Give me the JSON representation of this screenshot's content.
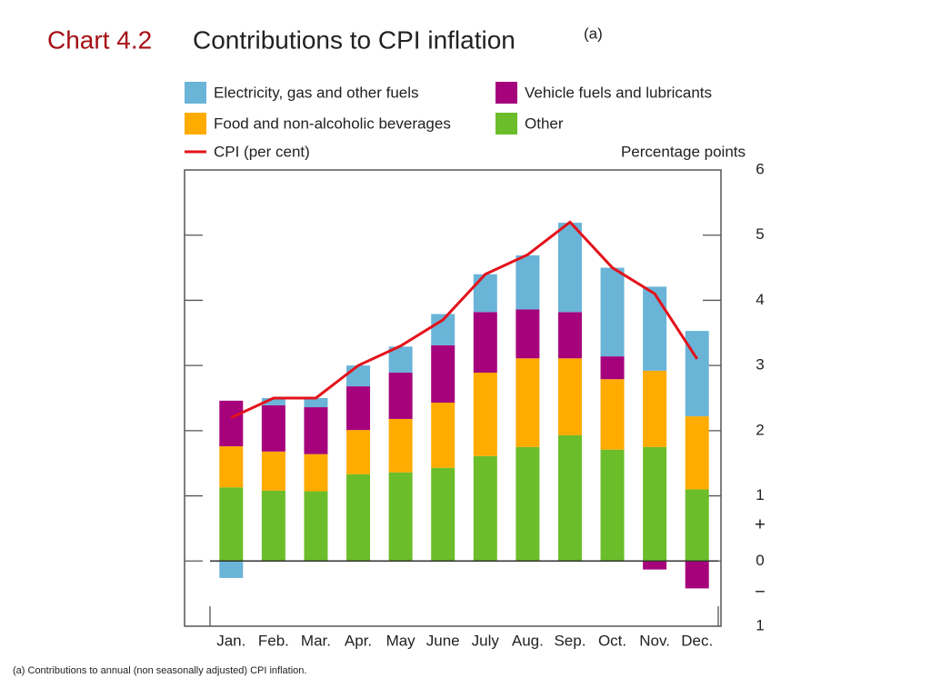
{
  "chart_data": {
    "type": "bar",
    "stacked": true,
    "chart_number": "Chart 4.2",
    "title": "Contributions to CPI inflation",
    "title_note": "(a)",
    "y_axis_label": "Percentage points",
    "axis_signs": [
      "+",
      "−"
    ],
    "footnote": "(a) Contributions to annual (non seasonally adjusted) CPI inflation.",
    "categories": [
      "Jan.",
      "Feb.",
      "Mar.",
      "Apr.",
      "May",
      "June",
      "July",
      "Aug.",
      "Sep.",
      "Oct.",
      "Nov.",
      "Dec."
    ],
    "series": [
      {
        "name": "Other",
        "color": "#6cbd2a",
        "values": [
          1.13,
          1.08,
          1.07,
          1.33,
          1.36,
          1.43,
          1.61,
          1.75,
          1.93,
          1.71,
          1.75,
          1.1
        ]
      },
      {
        "name": "Food and non-alcoholic beverages",
        "color": "#ffab00",
        "values": [
          0.63,
          0.6,
          0.57,
          0.68,
          0.82,
          1.0,
          1.28,
          1.36,
          1.18,
          1.08,
          1.17,
          1.12
        ]
      },
      {
        "name": "Vehicle fuels and lubricants",
        "color": "#a5027c",
        "values": [
          0.7,
          0.71,
          0.72,
          0.67,
          0.71,
          0.88,
          0.93,
          0.75,
          0.71,
          0.35,
          -0.13,
          -0.42
        ]
      },
      {
        "name": "Electricity, gas and other fuels",
        "color": "#6ab4d8",
        "values": [
          -0.26,
          0.11,
          0.14,
          0.32,
          0.4,
          0.48,
          0.58,
          0.83,
          1.37,
          1.36,
          1.29,
          1.31
        ]
      }
    ],
    "line": {
      "name": "CPI (per cent)",
      "color": "#e3121b",
      "values": [
        2.2,
        2.5,
        2.5,
        3.0,
        3.3,
        3.7,
        4.4,
        4.7,
        5.2,
        4.5,
        4.1,
        3.1
      ]
    },
    "ylim": [
      -1,
      6
    ],
    "yticks": [
      {
        "value": -1,
        "label": "1"
      },
      0,
      1,
      2,
      3,
      4,
      5,
      6
    ]
  }
}
